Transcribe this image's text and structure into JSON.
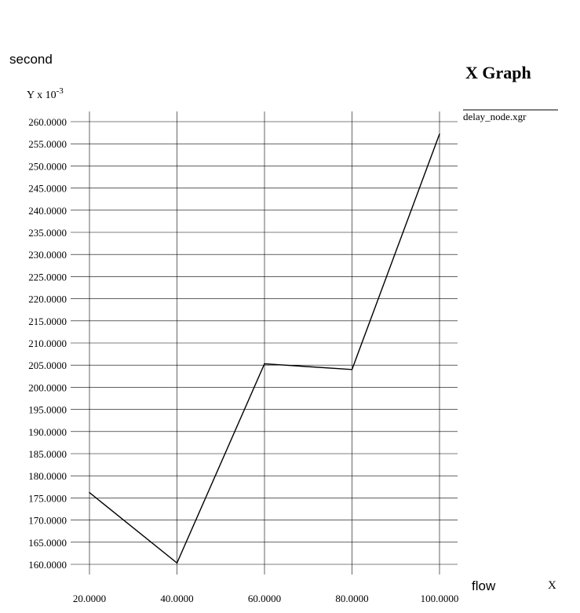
{
  "chart_data": {
    "type": "line",
    "title": "X Graph",
    "ylabel": "second",
    "xlabel": "flow",
    "y_scale_label": "Y x 10",
    "y_scale_exponent": "-3",
    "x_unit_label": "X",
    "x_ticks": [
      "20.0000",
      "40.0000",
      "60.0000",
      "80.0000",
      "100.0000"
    ],
    "y_ticks": [
      "160.0000",
      "165.0000",
      "170.0000",
      "175.0000",
      "180.0000",
      "185.0000",
      "190.0000",
      "195.0000",
      "200.0000",
      "205.0000",
      "210.0000",
      "215.0000",
      "220.0000",
      "225.0000",
      "230.0000",
      "235.0000",
      "240.0000",
      "245.0000",
      "250.0000",
      "255.0000",
      "260.0000"
    ],
    "xlim": [
      20,
      100
    ],
    "ylim": [
      160,
      260
    ],
    "grid": true,
    "legend_position": "top-right",
    "series": [
      {
        "name": "delay_node.xgr",
        "color": "#000000",
        "x": [
          20,
          40,
          60,
          80,
          100
        ],
        "y": [
          176.2,
          160.3,
          205.3,
          204.0,
          257.2
        ]
      }
    ]
  }
}
